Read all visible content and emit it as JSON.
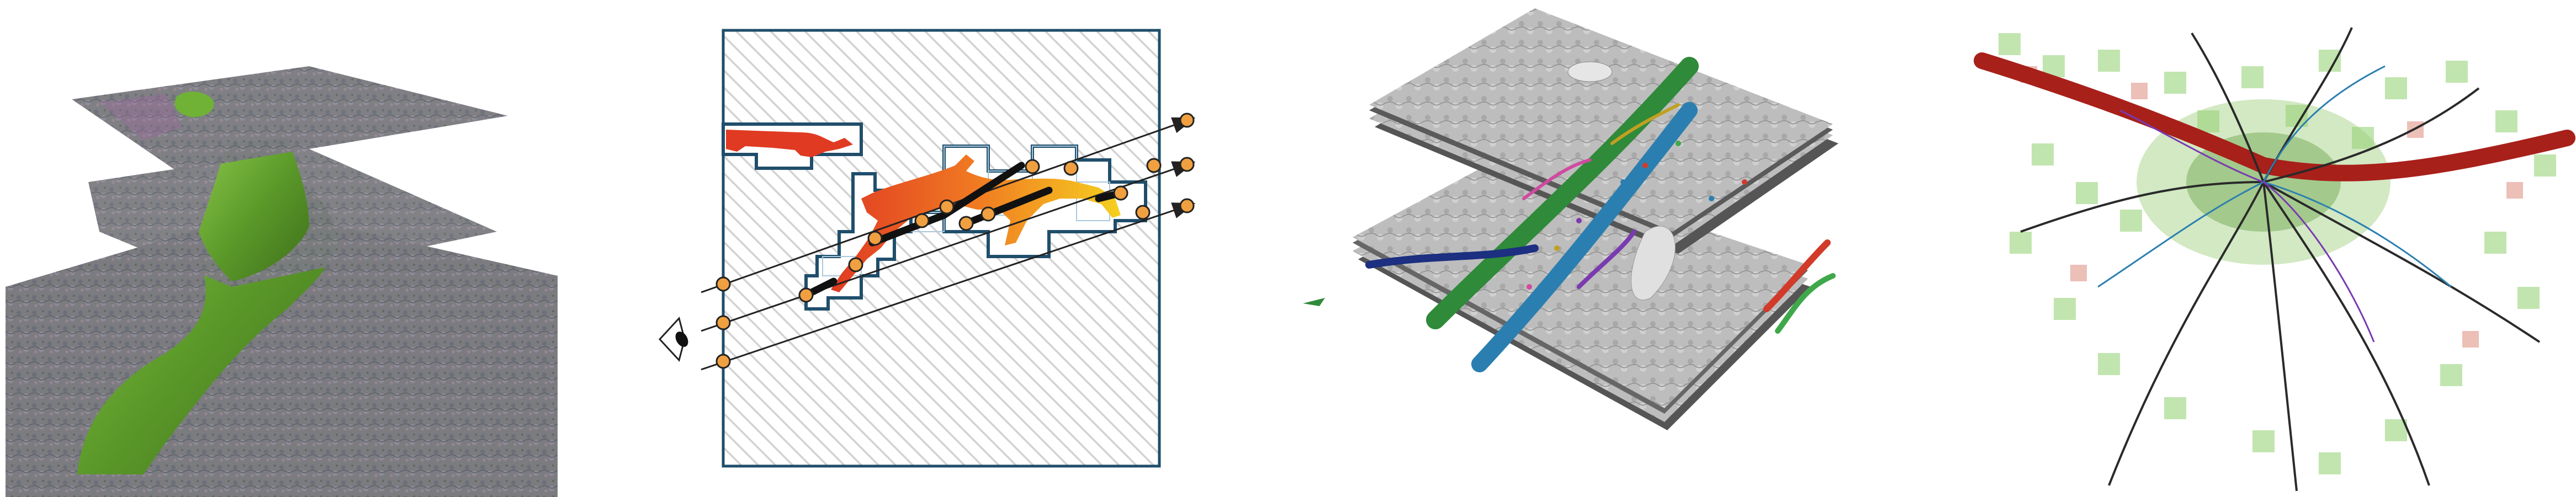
{
  "figure": {
    "panels": [
      {
        "id": "p1",
        "subject": "neuron-segment-with-em-slices"
      },
      {
        "id": "p2",
        "subject": "ray-casting-through-brick-grid"
      },
      {
        "id": "p3",
        "subject": "segmented-neurites-in-em-stack"
      },
      {
        "id": "p4",
        "subject": "neuron-skeleton-with-sparse-bricks"
      }
    ],
    "colors": {
      "segment_green": "#5c9a2a",
      "diagram_frame": "#1f4e6b",
      "ray_marker": "#f0a040",
      "neurite_red": "#b82218",
      "neurite_blue": "#2b7fb0",
      "neurite_green": "#3ea84a"
    },
    "icons": [
      "eye-icon"
    ]
  }
}
